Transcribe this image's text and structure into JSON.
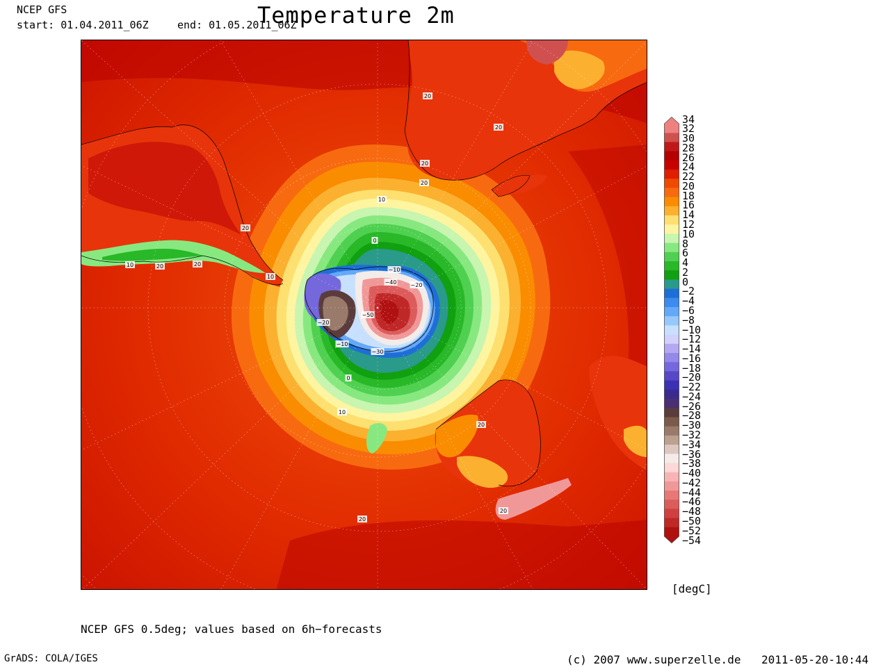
{
  "header": {
    "model": "NCEP GFS",
    "start_label": "start: 01.04.2011_06Z",
    "end_label": "end: 01.05.2011_06Z",
    "title": "Temperature 2m"
  },
  "legend": {
    "labels": [
      "34",
      "32",
      "30",
      "28",
      "26",
      "24",
      "22",
      "20",
      "18",
      "16",
      "14",
      "12",
      "10",
      "8",
      "6",
      "4",
      "2",
      "0",
      "−2",
      "−4",
      "−6",
      "−8",
      "−10",
      "−12",
      "−14",
      "−16",
      "−18",
      "−20",
      "−22",
      "−24",
      "−26",
      "−28",
      "−30",
      "−32",
      "−34",
      "−36",
      "−38",
      "−40",
      "−42",
      "−44",
      "−46",
      "−48",
      "−50",
      "−52",
      "−54"
    ],
    "colors": [
      "#ee8080",
      "#d05050",
      "#c01818",
      "#b40000",
      "#c80000",
      "#e01e00",
      "#f04a00",
      "#f86a10",
      "#fa8c00",
      "#fcb030",
      "#fde070",
      "#fff5a0",
      "#c8f5b0",
      "#88e880",
      "#50d050",
      "#28b828",
      "#10a010",
      "#2a9a8a",
      "#1e6ed8",
      "#3c8cf0",
      "#64a8f8",
      "#96c8fc",
      "#c8e0ff",
      "#d4d0fc",
      "#b4a8f4",
      "#9488e8",
      "#7468dc",
      "#5848c8",
      "#3c30b4",
      "#3a2a90",
      "#4a3070",
      "#5a3c3c",
      "#7a5a4a",
      "#9a7a6a",
      "#bca090",
      "#dcc8c0",
      "#f4ece8",
      "#fcd8d8",
      "#f8b4b4",
      "#f09898",
      "#e87878",
      "#dc5c5c",
      "#d04040",
      "#c02828",
      "#b01010"
    ],
    "unit": "[degC]"
  },
  "map": {
    "projection": "south-polar-stereographic",
    "contour_labels": [
      "20",
      "20",
      "20",
      "20",
      "20",
      "20",
      "20",
      "20",
      "20",
      "20",
      "10",
      "10",
      "10",
      "10",
      "0",
      "0",
      "−10",
      "−10",
      "−20",
      "−20",
      "−30",
      "−40",
      "−50"
    ]
  },
  "footer": {
    "footnote": "NCEP GFS 0.5deg; values based on 6h−forecasts",
    "grads": "GrADS: COLA/IGES",
    "copyright": "(c) 2007 www.superzelle.de",
    "timestamp": "2011-05-20-10:44"
  }
}
